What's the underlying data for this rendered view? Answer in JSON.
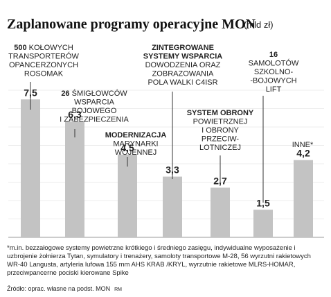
{
  "header": {
    "title": "Zaplanowane programy operacyjne MON",
    "unit": "(mld zł)"
  },
  "chart_data": {
    "type": "bar",
    "ylim": [
      0,
      8
    ],
    "grid": true,
    "values": [
      7.5,
      6.3,
      4.5,
      3.3,
      2.7,
      1.5,
      4.2
    ],
    "value_labels": [
      "7,5",
      "6,3",
      "4,5",
      "3,3",
      "2,7",
      "1,5",
      "4,2"
    ],
    "categories": [
      {
        "bold": "500",
        "normal": " KOŁOWYCH TRANSPORTERÓW OPANCERZONYCH ROSOMAK"
      },
      {
        "bold": "26",
        "normal": " ŚMIGŁOWCÓW WSPARCIA BOJOWEGO I ZABEZPIECZENIA"
      },
      {
        "bold": "MODERNIZACJA",
        "normal": " MARYNARKI WOJENNEJ"
      },
      {
        "bold": "ZINTEGROWANE SYSTEMY WSPARCIA",
        "normal": " DOWODZENIA ORAZ ZOBRAZOWANIA POLA WALKI C4ISR"
      },
      {
        "bold": "SYSTEM OBRONY",
        "normal": " POWIETRZNEJ I OBRONY PRZECIW-LOTNICZEJ"
      },
      {
        "bold": "16",
        "normal": " SAMOLOTÓW SZKOLNO-BOJOWYCH LIFT"
      },
      {
        "bold": "",
        "normal": "INNE*"
      }
    ],
    "colors": {
      "bar": "#c3c3c3",
      "grid": "#ececec",
      "axis": "#9a9a9a",
      "text": "#222222"
    }
  },
  "footnote": "*m.in. bezzałogowe systemy powietrzne krótkiego i średniego zasięgu, indywidualne wyposażenie i uzbrojenie żołnierza Tytan, symulatory i trenażery, samoloty transportowe M-28, 56 wyrzutni rakietowych WR-40 Langusta, artyleria lufowa 155 mm AHS KRAB /KRYL, wyrzutnie rakietowe MLRS-HOMAR, przeciwpancerne pociski kierowane Spike",
  "source": {
    "text": "Źródło: oprac. własne na podst. MON",
    "mark": "RM"
  }
}
